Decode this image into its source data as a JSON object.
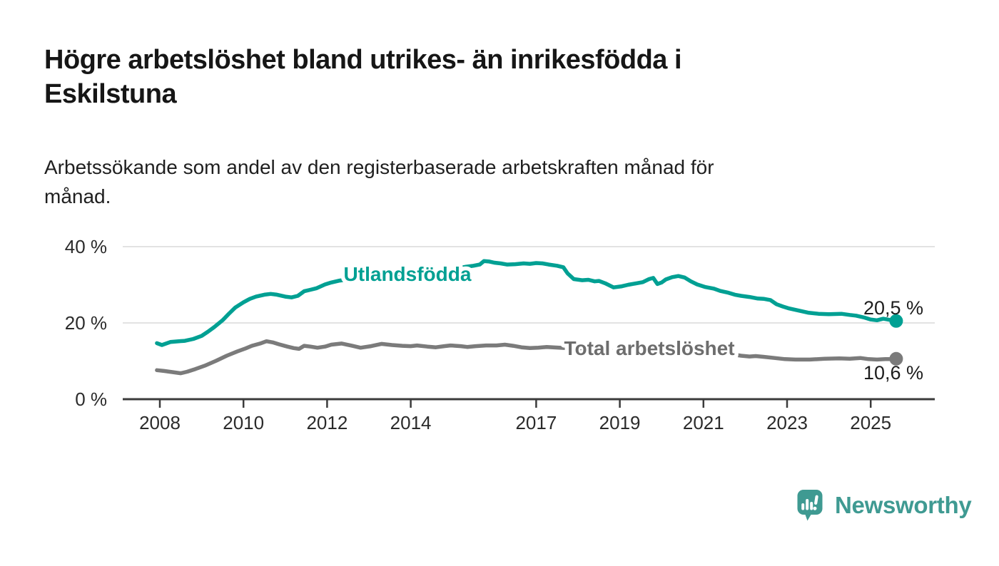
{
  "header": {
    "title_lines": [
      "Högre arbetslöshet bland utrikes- än inrikesfödda i",
      "Eskilstuna"
    ],
    "subtitle_lines": [
      "Arbetssökande som andel av den registerbaserade arbetskraften månad för",
      "månad."
    ]
  },
  "chart_data": {
    "type": "line",
    "title": "Högre arbetslöshet bland utrikes- än inrikesfödda i Eskilstuna",
    "subtitle": "Arbetssökande som andel av den registerbaserade arbetskraften månad för månad.",
    "xlabel": "",
    "ylabel": "",
    "x_range": [
      2007.9,
      2025.95
    ],
    "ylim": [
      0,
      42
    ],
    "grid": "horizontal-only",
    "x_axis": {
      "ticks": [
        {
          "year": 2008,
          "label": "2008"
        },
        {
          "year": 2010,
          "label": "2010"
        },
        {
          "year": 2012,
          "label": "2012"
        },
        {
          "year": 2014,
          "label": "2014"
        },
        {
          "year": 2017,
          "label": "2017"
        },
        {
          "year": 2019,
          "label": "2019"
        },
        {
          "year": 2021,
          "label": "2021"
        },
        {
          "year": 2023,
          "label": "2023"
        },
        {
          "year": 2025,
          "label": "2025"
        }
      ]
    },
    "y_axis": {
      "ticks": [
        {
          "value": 0,
          "label": "0 %"
        },
        {
          "value": 20,
          "label": "20 %"
        },
        {
          "value": 40,
          "label": "40 %"
        }
      ]
    },
    "series": [
      {
        "id": "utlandsfodda",
        "name": "Utlandsfödda",
        "color": "#00a093",
        "label_color": "#00a093",
        "end_value": 20.5,
        "end_label": "20,5 %",
        "points": [
          [
            2007.93,
            14.7
          ],
          [
            2008.05,
            14.2
          ],
          [
            2008.25,
            15.0
          ],
          [
            2008.45,
            15.2
          ],
          [
            2008.6,
            15.3
          ],
          [
            2008.8,
            15.8
          ],
          [
            2009.0,
            16.6
          ],
          [
            2009.15,
            17.7
          ],
          [
            2009.3,
            18.9
          ],
          [
            2009.5,
            20.7
          ],
          [
            2009.65,
            22.4
          ],
          [
            2009.8,
            24.0
          ],
          [
            2010.0,
            25.4
          ],
          [
            2010.15,
            26.3
          ],
          [
            2010.3,
            26.9
          ],
          [
            2010.5,
            27.4
          ],
          [
            2010.65,
            27.6
          ],
          [
            2010.8,
            27.4
          ],
          [
            2011.0,
            26.9
          ],
          [
            2011.15,
            26.7
          ],
          [
            2011.3,
            27.1
          ],
          [
            2011.45,
            28.3
          ],
          [
            2011.6,
            28.7
          ],
          [
            2011.75,
            29.1
          ],
          [
            2011.95,
            30.1
          ],
          [
            2012.1,
            30.6
          ],
          [
            2012.3,
            31.1
          ],
          [
            2012.5,
            31.4
          ],
          [
            2012.7,
            31.6
          ],
          [
            2012.9,
            31.5
          ],
          [
            2013.1,
            31.9
          ],
          [
            2013.35,
            32.3
          ],
          [
            2013.6,
            32.1
          ],
          [
            2013.85,
            32.4
          ],
          [
            2014.1,
            32.8
          ],
          [
            2014.35,
            33.1
          ],
          [
            2014.6,
            33.4
          ],
          [
            2014.85,
            33.9
          ],
          [
            2015.1,
            34.3
          ],
          [
            2015.3,
            34.7
          ],
          [
            2015.5,
            35.0
          ],
          [
            2015.65,
            35.3
          ],
          [
            2015.75,
            36.2
          ],
          [
            2015.88,
            36.1
          ],
          [
            2016.0,
            35.8
          ],
          [
            2016.15,
            35.6
          ],
          [
            2016.3,
            35.3
          ],
          [
            2016.5,
            35.4
          ],
          [
            2016.7,
            35.6
          ],
          [
            2016.85,
            35.5
          ],
          [
            2017.0,
            35.7
          ],
          [
            2017.15,
            35.6
          ],
          [
            2017.3,
            35.3
          ],
          [
            2017.5,
            35.0
          ],
          [
            2017.65,
            34.6
          ],
          [
            2017.75,
            33.0
          ],
          [
            2017.9,
            31.5
          ],
          [
            2018.1,
            31.2
          ],
          [
            2018.25,
            31.3
          ],
          [
            2018.4,
            30.9
          ],
          [
            2018.5,
            31.0
          ],
          [
            2018.65,
            30.4
          ],
          [
            2018.85,
            29.3
          ],
          [
            2019.05,
            29.6
          ],
          [
            2019.2,
            30.0
          ],
          [
            2019.4,
            30.4
          ],
          [
            2019.55,
            30.7
          ],
          [
            2019.7,
            31.5
          ],
          [
            2019.8,
            31.8
          ],
          [
            2019.9,
            30.2
          ],
          [
            2020.0,
            30.6
          ],
          [
            2020.1,
            31.4
          ],
          [
            2020.25,
            32.0
          ],
          [
            2020.4,
            32.3
          ],
          [
            2020.55,
            31.9
          ],
          [
            2020.7,
            30.9
          ],
          [
            2020.85,
            30.1
          ],
          [
            2021.05,
            29.4
          ],
          [
            2021.25,
            29.0
          ],
          [
            2021.4,
            28.4
          ],
          [
            2021.6,
            27.9
          ],
          [
            2021.75,
            27.4
          ],
          [
            2021.9,
            27.1
          ],
          [
            2022.1,
            26.8
          ],
          [
            2022.3,
            26.4
          ],
          [
            2022.45,
            26.3
          ],
          [
            2022.6,
            26.0
          ],
          [
            2022.75,
            24.9
          ],
          [
            2022.9,
            24.3
          ],
          [
            2023.05,
            23.8
          ],
          [
            2023.25,
            23.3
          ],
          [
            2023.5,
            22.7
          ],
          [
            2023.75,
            22.4
          ],
          [
            2024.0,
            22.3
          ],
          [
            2024.3,
            22.4
          ],
          [
            2024.5,
            22.1
          ],
          [
            2024.65,
            21.9
          ],
          [
            2024.85,
            21.4
          ],
          [
            2025.0,
            20.9
          ],
          [
            2025.15,
            20.7
          ],
          [
            2025.3,
            21.1
          ],
          [
            2025.45,
            20.8
          ],
          [
            2025.61,
            20.5
          ]
        ]
      },
      {
        "id": "total",
        "name": "Total arbetslöshet",
        "color": "#7b7b7b",
        "label_color": "#6d6d6d",
        "end_value": 10.6,
        "end_label": "10,6 %",
        "points": [
          [
            2007.93,
            7.6
          ],
          [
            2008.1,
            7.4
          ],
          [
            2008.3,
            7.1
          ],
          [
            2008.5,
            6.8
          ],
          [
            2008.65,
            7.2
          ],
          [
            2008.85,
            7.9
          ],
          [
            2009.1,
            8.9
          ],
          [
            2009.35,
            10.1
          ],
          [
            2009.6,
            11.4
          ],
          [
            2009.85,
            12.5
          ],
          [
            2010.05,
            13.3
          ],
          [
            2010.2,
            14.0
          ],
          [
            2010.4,
            14.6
          ],
          [
            2010.55,
            15.2
          ],
          [
            2010.7,
            14.9
          ],
          [
            2010.85,
            14.4
          ],
          [
            2011.05,
            13.8
          ],
          [
            2011.2,
            13.4
          ],
          [
            2011.33,
            13.2
          ],
          [
            2011.45,
            14.0
          ],
          [
            2011.6,
            13.8
          ],
          [
            2011.77,
            13.5
          ],
          [
            2011.95,
            13.8
          ],
          [
            2012.1,
            14.3
          ],
          [
            2012.35,
            14.6
          ],
          [
            2012.6,
            14.0
          ],
          [
            2012.8,
            13.5
          ],
          [
            2013.05,
            13.9
          ],
          [
            2013.3,
            14.5
          ],
          [
            2013.55,
            14.2
          ],
          [
            2013.8,
            14.0
          ],
          [
            2014.0,
            13.9
          ],
          [
            2014.15,
            14.1
          ],
          [
            2014.4,
            13.8
          ],
          [
            2014.6,
            13.6
          ],
          [
            2014.8,
            13.9
          ],
          [
            2014.95,
            14.1
          ],
          [
            2015.2,
            13.9
          ],
          [
            2015.35,
            13.7
          ],
          [
            2015.55,
            13.9
          ],
          [
            2015.8,
            14.1
          ],
          [
            2016.05,
            14.1
          ],
          [
            2016.25,
            14.3
          ],
          [
            2016.45,
            14.0
          ],
          [
            2016.65,
            13.6
          ],
          [
            2016.85,
            13.4
          ],
          [
            2017.05,
            13.5
          ],
          [
            2017.25,
            13.7
          ],
          [
            2017.4,
            13.6
          ],
          [
            2017.7,
            13.4
          ],
          [
            2018.0,
            13.2
          ],
          [
            2018.3,
            13.0
          ],
          [
            2018.6,
            12.8
          ],
          [
            2018.9,
            12.6
          ],
          [
            2019.2,
            12.5
          ],
          [
            2019.5,
            12.4
          ],
          [
            2019.8,
            12.5
          ],
          [
            2020.05,
            12.7
          ],
          [
            2020.3,
            13.3
          ],
          [
            2020.5,
            13.6
          ],
          [
            2020.7,
            13.4
          ],
          [
            2021.0,
            13.0
          ],
          [
            2021.3,
            12.5
          ],
          [
            2021.6,
            11.9
          ],
          [
            2021.9,
            11.4
          ],
          [
            2022.1,
            11.2
          ],
          [
            2022.25,
            11.3
          ],
          [
            2022.45,
            11.1
          ],
          [
            2022.7,
            10.8
          ],
          [
            2022.95,
            10.5
          ],
          [
            2023.2,
            10.4
          ],
          [
            2023.55,
            10.4
          ],
          [
            2023.9,
            10.6
          ],
          [
            2024.25,
            10.7
          ],
          [
            2024.5,
            10.6
          ],
          [
            2024.75,
            10.8
          ],
          [
            2024.95,
            10.5
          ],
          [
            2025.15,
            10.4
          ],
          [
            2025.35,
            10.5
          ],
          [
            2025.5,
            10.5
          ],
          [
            2025.61,
            10.6
          ]
        ]
      }
    ]
  },
  "footer": {
    "brand": "Newsworthy",
    "brand_color": "#3f9a92",
    "logo_icon": "speech-bubble-bar-chart"
  }
}
